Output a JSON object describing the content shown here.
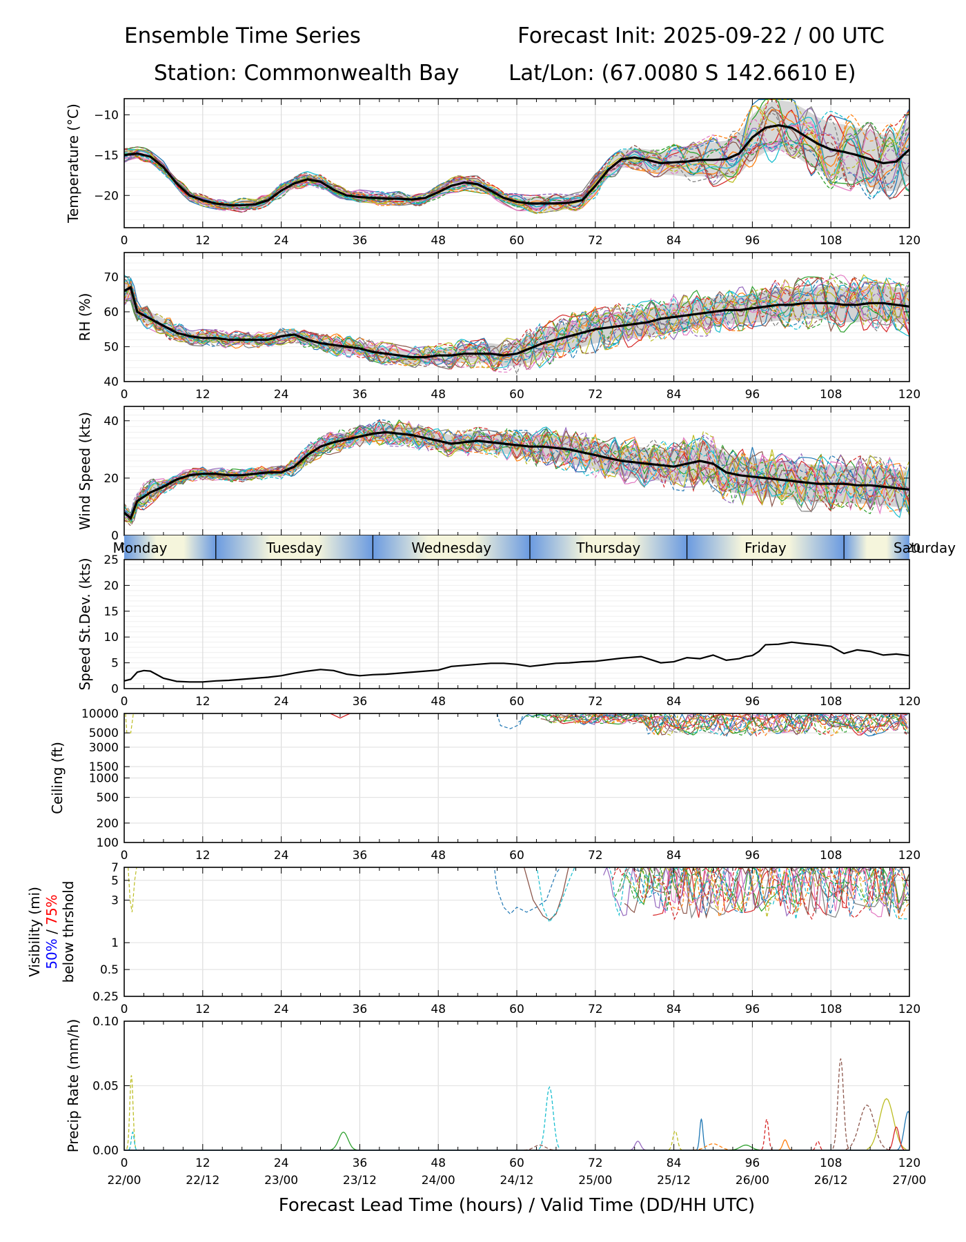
{
  "header": {
    "title_left": "Ensemble Time Series",
    "title_right": "Forecast Init: 2025-09-22 / 00 UTC",
    "station": "Station: Commonwealth Bay",
    "latlon": "Lat/Lon: (67.0080 S 142.6610 E)"
  },
  "chart_data": [
    {
      "type": "line",
      "id": "temperature",
      "ylabel": "Temperature (°C)",
      "ylim": [
        -24,
        -8
      ],
      "yticks": [
        -20,
        -15,
        -10
      ],
      "mean": {
        "x": [
          0,
          2,
          4,
          6,
          8,
          10,
          12,
          14,
          16,
          18,
          20,
          22,
          24,
          26,
          28,
          30,
          32,
          34,
          36,
          38,
          40,
          42,
          44,
          46,
          48,
          50,
          52,
          54,
          56,
          58,
          60,
          62,
          64,
          66,
          68,
          70,
          72,
          74,
          76,
          78,
          80,
          82,
          84,
          86,
          88,
          90,
          92,
          94,
          96,
          98,
          100,
          102,
          104,
          106,
          108,
          110,
          112,
          114,
          116,
          118,
          120
        ],
        "y": [
          -15,
          -14.8,
          -15.2,
          -16.5,
          -18.5,
          -20,
          -20.6,
          -21,
          -21.2,
          -21.2,
          -21.1,
          -20.6,
          -19.4,
          -18.5,
          -18,
          -18.3,
          -19.3,
          -20,
          -20.2,
          -20.3,
          -20.4,
          -20.4,
          -20.5,
          -20.3,
          -19.6,
          -18.8,
          -18.4,
          -18.6,
          -19.4,
          -20.3,
          -20.8,
          -21,
          -21,
          -21,
          -20.9,
          -20.6,
          -18.8,
          -16.8,
          -15.5,
          -15.3,
          -15.6,
          -16,
          -15.9,
          -15.8,
          -15.6,
          -15.6,
          -15.5,
          -14.8,
          -12.8,
          -11.6,
          -11.3,
          -11.6,
          -12.6,
          -13.6,
          -14.3,
          -14.6,
          -15,
          -15.5,
          -16,
          -15.8,
          -14.3
        ]
      },
      "spread": {
        "lower": [
          -15.6,
          -15.4,
          -15.9,
          -17,
          -19,
          -20.5,
          -21.1,
          -21.5,
          -21.7,
          -21.8,
          -21.7,
          -21.2,
          -20,
          -19.1,
          -18.7,
          -19,
          -19.9,
          -20.6,
          -20.8,
          -20.9,
          -21,
          -21,
          -21.1,
          -20.9,
          -20.2,
          -19.5,
          -19.1,
          -19.3,
          -20,
          -20.9,
          -21.5,
          -21.8,
          -21.9,
          -21.9,
          -21.7,
          -21.4,
          -19.8,
          -17.8,
          -16.6,
          -16.5,
          -16.9,
          -17.4,
          -17.5,
          -17.7,
          -17.6,
          -17.8,
          -17.8,
          -17.4,
          -15.6,
          -14.6,
          -14.4,
          -14.8,
          -15.9,
          -16.9,
          -17.6,
          -18,
          -18.4,
          -19,
          -19.5,
          -19.4,
          -18
        ],
        "upper": [
          -14.4,
          -14.2,
          -14.6,
          -15.9,
          -18,
          -19.5,
          -20.1,
          -20.5,
          -20.7,
          -20.6,
          -20.5,
          -20,
          -18.8,
          -17.9,
          -17.3,
          -17.6,
          -18.7,
          -19.4,
          -19.6,
          -19.7,
          -19.8,
          -19.8,
          -19.9,
          -19.7,
          -19,
          -18.1,
          -17.7,
          -17.9,
          -18.8,
          -19.7,
          -20.1,
          -20.2,
          -20.1,
          -20.1,
          -20.1,
          -19.8,
          -17.8,
          -15.8,
          -14.4,
          -14.1,
          -14.3,
          -14.6,
          -14.3,
          -13.9,
          -13.6,
          -13.4,
          -13.2,
          -12.2,
          -10,
          -8.6,
          -8.2,
          -8.4,
          -9.3,
          -10.3,
          -11,
          -11.2,
          -11.6,
          -12,
          -12.5,
          -12.2,
          -10.6
        ]
      }
    },
    {
      "type": "line",
      "id": "rh",
      "ylabel": "RH (%)",
      "ylim": [
        40,
        77
      ],
      "yticks": [
        40,
        50,
        60,
        70
      ],
      "mean": {
        "x": [
          0,
          1,
          2,
          4,
          6,
          8,
          10,
          12,
          14,
          16,
          18,
          20,
          22,
          24,
          26,
          28,
          30,
          32,
          34,
          36,
          38,
          40,
          42,
          44,
          46,
          48,
          50,
          52,
          54,
          56,
          58,
          60,
          62,
          64,
          66,
          68,
          70,
          72,
          74,
          76,
          78,
          80,
          82,
          84,
          86,
          88,
          90,
          92,
          94,
          96,
          98,
          100,
          102,
          104,
          106,
          108,
          110,
          112,
          114,
          116,
          118,
          120
        ],
        "y": [
          66,
          67,
          60,
          58,
          56,
          54,
          53,
          52.5,
          52.5,
          52,
          52,
          52,
          52,
          53,
          53.5,
          52,
          51,
          50.5,
          50,
          49.5,
          48.5,
          48,
          47.5,
          47,
          47,
          47.5,
          47.5,
          48,
          48,
          48,
          47.5,
          48,
          49.5,
          51,
          52,
          53,
          54,
          55,
          55.5,
          56,
          56.5,
          57,
          58,
          58.5,
          59,
          59.5,
          60,
          60.5,
          60.5,
          61,
          61.5,
          62,
          62,
          62.5,
          62.5,
          62.5,
          62,
          62,
          62.5,
          62.5,
          62,
          61.5
        ]
      },
      "spread": {
        "lower": [
          63,
          64,
          58,
          56,
          54,
          52,
          51.5,
          51,
          51,
          50.5,
          50.5,
          50.5,
          50.5,
          51.5,
          52,
          50.5,
          49.5,
          48.5,
          48,
          47.5,
          46.5,
          46,
          45.5,
          45,
          45,
          45.5,
          45,
          45.5,
          45.5,
          45,
          44.5,
          44.5,
          45.5,
          47,
          48,
          49,
          50,
          51,
          51.5,
          52,
          52.5,
          53,
          54,
          54.5,
          55,
          55.5,
          56,
          56.5,
          56.5,
          57,
          57,
          57.5,
          57.5,
          58,
          58,
          57.5,
          57,
          57,
          57.5,
          57.5,
          57,
          56.5
        ],
        "upper": [
          69,
          70,
          62,
          60,
          58,
          56,
          54.5,
          54,
          54,
          53.5,
          53.5,
          53.5,
          53.5,
          54.5,
          55,
          53.5,
          52.5,
          52.5,
          52,
          51.5,
          50.5,
          50,
          49.5,
          49,
          49,
          49.5,
          50,
          50.5,
          50.5,
          51,
          50.5,
          51.5,
          53.5,
          55,
          56,
          57,
          58,
          59,
          59.5,
          60,
          60.5,
          61,
          62,
          62.5,
          63,
          63.5,
          64,
          64.5,
          64.5,
          65,
          66,
          66.5,
          66.5,
          67,
          67,
          67.5,
          67,
          67,
          67.5,
          67.5,
          67,
          66.5
        ]
      }
    },
    {
      "type": "line",
      "id": "wind_speed",
      "ylabel": "Wind Speed (kts)",
      "ylim": [
        0,
        45
      ],
      "yticks": [
        0,
        20,
        40
      ],
      "mean": {
        "x": [
          0,
          1,
          2,
          4,
          6,
          8,
          10,
          12,
          14,
          16,
          18,
          20,
          22,
          24,
          26,
          28,
          30,
          32,
          34,
          36,
          38,
          40,
          42,
          44,
          46,
          48,
          50,
          52,
          54,
          56,
          58,
          60,
          62,
          64,
          66,
          68,
          70,
          72,
          74,
          76,
          78,
          80,
          82,
          84,
          86,
          88,
          90,
          92,
          94,
          96,
          98,
          100,
          102,
          104,
          106,
          108,
          110,
          112,
          114,
          116,
          118,
          120
        ],
        "y": [
          8,
          6,
          12,
          15,
          17,
          19.5,
          21,
          21.5,
          21.5,
          21,
          21,
          21.5,
          22,
          22,
          24,
          28,
          31,
          32.5,
          33.5,
          34.5,
          35.5,
          36,
          35.5,
          35,
          34,
          33,
          32,
          32.5,
          33,
          32.5,
          32,
          31.5,
          31,
          31,
          30.5,
          30,
          29,
          28,
          27,
          26,
          25.5,
          25,
          24.5,
          24,
          25,
          26,
          25,
          22,
          21,
          20.5,
          20,
          19.5,
          19,
          18.5,
          18,
          18,
          18,
          17.5,
          17.5,
          17,
          16.5,
          16
        ]
      },
      "spread": {
        "lower": [
          6,
          4,
          9,
          12,
          15,
          18,
          19.5,
          20,
          20,
          19.5,
          19.5,
          20,
          20.5,
          20.5,
          22,
          25.5,
          28.5,
          30,
          31,
          32,
          32.5,
          33,
          32.5,
          32,
          31,
          30,
          29,
          29.5,
          30,
          29.5,
          28.5,
          28,
          27,
          26.5,
          26,
          25,
          24,
          23,
          22,
          21,
          20,
          19.5,
          19,
          18.5,
          19,
          19.5,
          18.5,
          15.5,
          14.5,
          14,
          13.5,
          13,
          12.5,
          12,
          11.5,
          11.5,
          11.5,
          11,
          11,
          10.5,
          10,
          9.5
        ],
        "upper": [
          10,
          8,
          15,
          18,
          19,
          21,
          22.5,
          23,
          23,
          22.5,
          22.5,
          23,
          23.5,
          23.5,
          26,
          30.5,
          33.5,
          35,
          36,
          37,
          38.5,
          39,
          38.5,
          38,
          37,
          36,
          35,
          35.5,
          36,
          35.5,
          35.5,
          35,
          35,
          35.5,
          35,
          35,
          34,
          33,
          32,
          31,
          31,
          30.5,
          30,
          29.5,
          31,
          32.5,
          31.5,
          28.5,
          27.5,
          27,
          26.5,
          26,
          25.5,
          25,
          24.5,
          24.5,
          24.5,
          24,
          24,
          23.5,
          23,
          22.5
        ]
      }
    },
    {
      "type": "line",
      "id": "speed_stdev",
      "ylabel": "Speed St.Dev. (kts)",
      "ylim": [
        0,
        25
      ],
      "yticks": [
        0,
        5,
        10,
        15,
        20,
        25
      ],
      "series": [
        {
          "name": "Speed St.Dev.",
          "x": [
            0,
            1,
            2,
            3,
            4,
            6,
            8,
            10,
            12,
            14,
            16,
            18,
            20,
            22,
            24,
            26,
            28,
            30,
            32,
            34,
            36,
            38,
            40,
            42,
            44,
            46,
            48,
            50,
            52,
            54,
            56,
            58,
            60,
            62,
            64,
            66,
            68,
            70,
            72,
            74,
            76,
            78,
            79,
            80,
            82,
            84,
            86,
            88,
            90,
            92,
            94,
            95,
            96,
            97,
            98,
            100,
            102,
            104,
            106,
            108,
            110,
            112,
            114,
            116,
            118,
            120
          ],
          "y": [
            1.5,
            1.8,
            3.2,
            3.5,
            3.4,
            2,
            1.4,
            1.3,
            1.3,
            1.5,
            1.6,
            1.8,
            2,
            2.2,
            2.5,
            3,
            3.4,
            3.7,
            3.5,
            2.8,
            2.5,
            2.7,
            2.8,
            3,
            3.2,
            3.4,
            3.6,
            4.3,
            4.5,
            4.7,
            4.9,
            4.9,
            4.7,
            4.3,
            4.6,
            4.9,
            5,
            5.2,
            5.3,
            5.6,
            5.9,
            6.1,
            6.2,
            5.8,
            5,
            5.2,
            6,
            5.8,
            6.5,
            5.5,
            5.8,
            6.2,
            6.4,
            7.2,
            8.5,
            8.6,
            9,
            8.7,
            8.5,
            8.2,
            6.8,
            7.5,
            7.2,
            6.5,
            6.7,
            6.4
          ]
        }
      ]
    },
    {
      "type": "line",
      "id": "ceiling",
      "ylabel": "Ceiling (ft)",
      "yscale": "log",
      "ylim": [
        100,
        10000
      ],
      "yticks": [
        100,
        200,
        500,
        1000,
        1500,
        3000,
        5000,
        10000
      ]
    },
    {
      "type": "line",
      "id": "visibility",
      "ylabel": "Visibility (mi)",
      "ylabel_lines": [
        "50% / 75%",
        "below thrshold"
      ],
      "ylabel_50": "50%",
      "ylabel_slash": " / ",
      "ylabel_75": "75%",
      "ylabel_sub": "below thrshold",
      "yscale": "log",
      "ylim": [
        0.25,
        7
      ],
      "yticks": [
        0.25,
        0.5,
        1,
        3,
        5,
        7
      ]
    },
    {
      "type": "line",
      "id": "precip",
      "ylabel": "Precip Rate (mm/h)",
      "ylim": [
        0,
        0.1
      ],
      "yticks": [
        "0.00",
        "0.05",
        "0.10"
      ]
    }
  ],
  "x_axis": {
    "lead_ticks": [
      "0",
      "12",
      "24",
      "36",
      "48",
      "60",
      "72",
      "84",
      "96",
      "108",
      "120"
    ],
    "valid_ticks": [
      "22/00",
      "22/12",
      "23/00",
      "23/12",
      "24/00",
      "24/12",
      "25/00",
      "25/12",
      "26/00",
      "26/12",
      "27/00"
    ],
    "xlabel": "Forecast Lead Time (hours) / Valid Time (DD/HH UTC)"
  },
  "days": [
    "Monday",
    "Tuesday",
    "Wednesday",
    "Thursday",
    "Friday",
    "Saturday"
  ],
  "colors": {
    "member_palette": [
      "#1f77b4",
      "#ff7f0e",
      "#2ca02c",
      "#d62728",
      "#9467bd",
      "#8c564b",
      "#e377c2",
      "#7f7f7f",
      "#bcbd22",
      "#17becf"
    ],
    "mean": "#000000",
    "spread_fill": "#d3d3d3",
    "vis_50": "#0000ff",
    "vis_75": "#ff0000",
    "day_light": "#f5f5dc",
    "day_dark": "#6a9ae0"
  }
}
